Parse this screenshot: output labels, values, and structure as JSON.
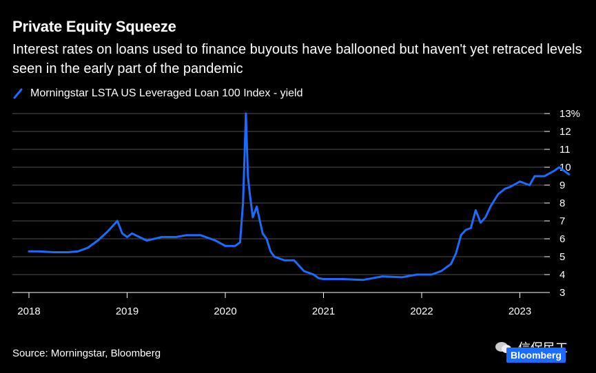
{
  "title": "Private Equity Squeeze",
  "subtitle": "Interest rates on loans used to finance buyouts have ballooned but haven't yet retraced levels seen in the early part of the pandemic",
  "source": "Source: Morningstar, Bloomberg",
  "watermark": "信保民工",
  "brand": "Bloomberg",
  "colors": {
    "line": "#1a6cff",
    "background": "#000000",
    "grid": "#555555"
  },
  "chart_data": {
    "type": "line",
    "title": "Private Equity Squeeze",
    "ylim": [
      3,
      13
    ],
    "y_ticks": [
      3,
      4,
      5,
      6,
      7,
      8,
      9,
      10,
      11,
      12,
      13
    ],
    "y_tick_labels": [
      "3",
      "4",
      "5",
      "6",
      "7",
      "8",
      "9",
      "10",
      "11",
      "12",
      "13%"
    ],
    "y_axis_side": "right",
    "x_ticks": [
      2018,
      2019,
      2020,
      2021,
      2022,
      2023
    ],
    "x_tick_labels": [
      "2018",
      "2019",
      "2020",
      "2021",
      "2022",
      "2023"
    ],
    "grid": "horizontal",
    "legend_position": "top-left",
    "series": [
      {
        "name": "Morningstar LSTA US Leveraged Loan 100 Index - yield",
        "x": [
          2018.0,
          2018.1,
          2018.25,
          2018.4,
          2018.5,
          2018.6,
          2018.7,
          2018.8,
          2018.9,
          2018.95,
          2019.0,
          2019.05,
          2019.2,
          2019.35,
          2019.5,
          2019.6,
          2019.75,
          2019.9,
          2020.0,
          2020.1,
          2020.15,
          2020.18,
          2020.21,
          2020.23,
          2020.25,
          2020.28,
          2020.32,
          2020.38,
          2020.42,
          2020.46,
          2020.5,
          2020.55,
          2020.6,
          2020.7,
          2020.8,
          2020.9,
          2020.95,
          2021.0,
          2021.2,
          2021.4,
          2021.5,
          2021.6,
          2021.8,
          2021.95,
          2022.0,
          2022.1,
          2022.2,
          2022.3,
          2022.35,
          2022.4,
          2022.45,
          2022.5,
          2022.55,
          2022.6,
          2022.65,
          2022.7,
          2022.78,
          2022.85,
          2022.9,
          2023.0,
          2023.1,
          2023.15,
          2023.25,
          2023.35,
          2023.4,
          2023.45,
          2023.5
        ],
        "y": [
          5.3,
          5.3,
          5.25,
          5.25,
          5.3,
          5.5,
          5.9,
          6.4,
          7.0,
          6.3,
          6.1,
          6.3,
          5.9,
          6.1,
          6.1,
          6.2,
          6.2,
          5.9,
          5.6,
          5.6,
          5.8,
          8.0,
          13.0,
          9.5,
          8.5,
          7.2,
          7.8,
          6.3,
          6.0,
          5.3,
          5.0,
          4.9,
          4.8,
          4.8,
          4.2,
          4.0,
          3.8,
          3.75,
          3.75,
          3.7,
          3.8,
          3.9,
          3.85,
          4.0,
          4.0,
          4.0,
          4.2,
          4.6,
          5.2,
          6.2,
          6.5,
          6.6,
          7.6,
          6.9,
          7.2,
          7.8,
          8.5,
          8.8,
          8.9,
          9.2,
          9.0,
          9.5,
          9.5,
          9.8,
          10.0,
          9.8,
          9.6
        ]
      }
    ]
  }
}
